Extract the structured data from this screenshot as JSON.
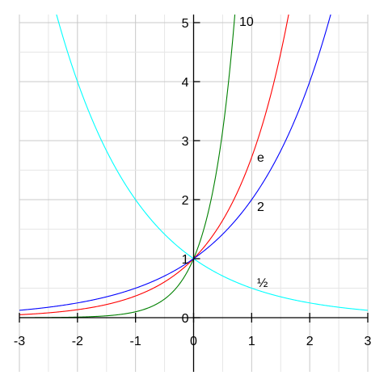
{
  "chart_data": {
    "type": "line",
    "title": "",
    "xlabel": "",
    "ylabel": "",
    "xlim": [
      -3,
      3
    ],
    "ylim": [
      0,
      5
    ],
    "x_ticks": [
      "-3",
      "-2",
      "-1",
      "0",
      "1",
      "2",
      "3"
    ],
    "y_ticks": [
      "0",
      "1",
      "2",
      "3",
      "4",
      "5"
    ],
    "grid": true,
    "series": [
      {
        "name": "10",
        "color": "#008000",
        "function": "10^x",
        "x": [
          -3,
          -2,
          -1,
          0,
          0.25,
          0.5,
          0.7
        ],
        "y": [
          0.001,
          0.01,
          0.1,
          1,
          1.78,
          3.16,
          5.01
        ]
      },
      {
        "name": "e",
        "color": "#ff0000",
        "function": "e^x",
        "x": [
          -3,
          -2,
          -1,
          0,
          1,
          1.61
        ],
        "y": [
          0.05,
          0.14,
          0.37,
          1,
          2.72,
          5.0
        ]
      },
      {
        "name": "2",
        "color": "#0000ff",
        "function": "2^x",
        "x": [
          -3,
          -2,
          -1,
          0,
          1,
          2,
          2.32
        ],
        "y": [
          0.125,
          0.25,
          0.5,
          1,
          2,
          4,
          5.0
        ]
      },
      {
        "name": "½",
        "color": "#00ffff",
        "function": "(1/2)^x",
        "x": [
          -2.32,
          -2,
          -1,
          0,
          1,
          2,
          3
        ],
        "y": [
          5.0,
          4,
          2,
          1,
          0.5,
          0.25,
          0.125
        ]
      }
    ]
  }
}
